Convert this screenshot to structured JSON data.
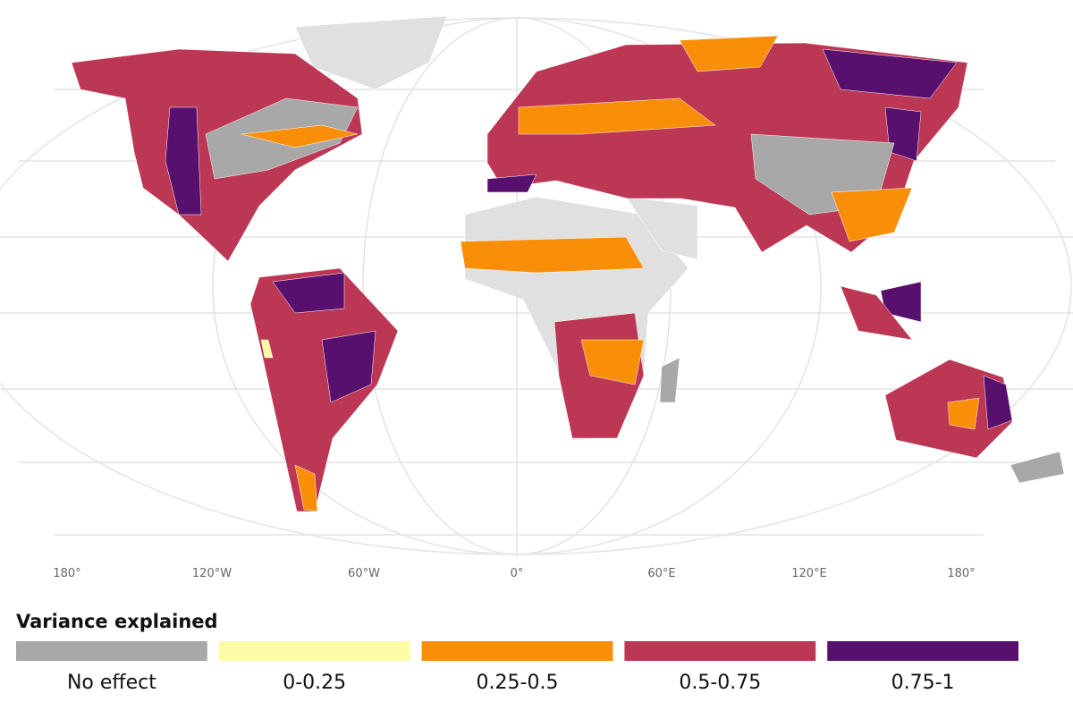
{
  "map": {
    "longitude_labels": [
      "180°",
      "120°W",
      "60°W",
      "0°",
      "60°E",
      "120°E",
      "180°"
    ],
    "legend": {
      "title": "Variance explained",
      "items": [
        {
          "label": "No effect",
          "color": "#a8a8a8"
        },
        {
          "label": "0-0.25",
          "color": "#fcfca4"
        },
        {
          "label": "0.25-0.5",
          "color": "#f98e09"
        },
        {
          "label": "0.5-0.75",
          "color": "#bc3754"
        },
        {
          "label": "0.75-1",
          "color": "#57106e"
        }
      ]
    }
  }
}
